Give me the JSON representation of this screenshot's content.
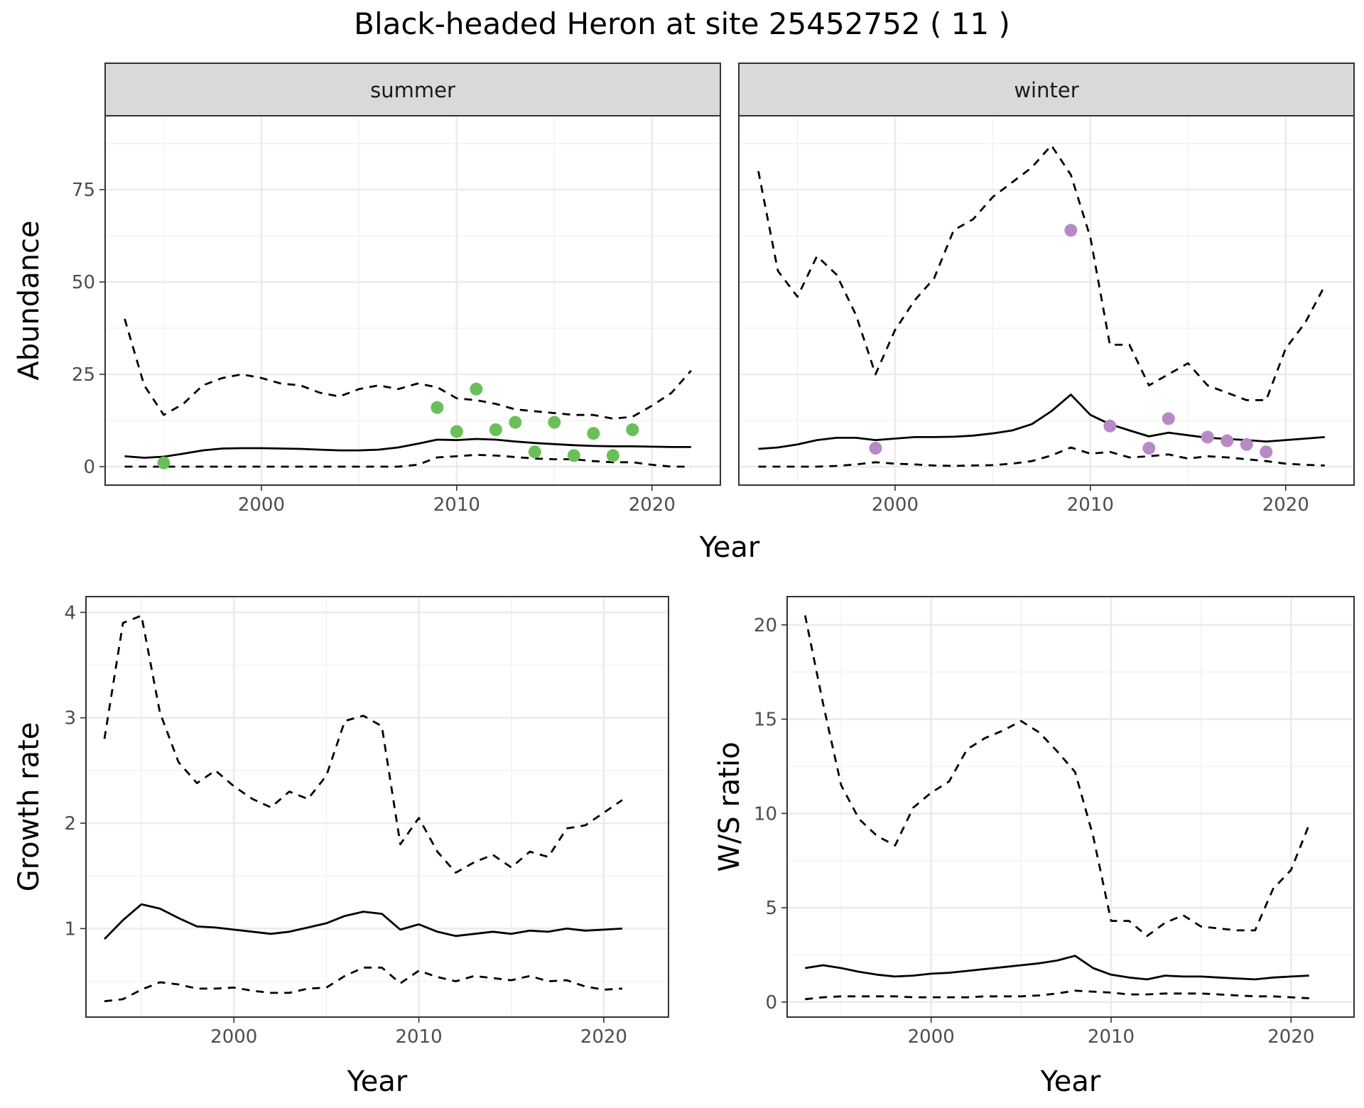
{
  "title": "Black-headed Heron at site 25452752 ( 11 )",
  "colors": {
    "summer_points": "#6bbf59",
    "winter_points": "#b78ac6",
    "line": "#000000"
  },
  "chart_data": [
    {
      "id": "abundance",
      "type": "line",
      "facets": [
        "summer",
        "winter"
      ],
      "xlabel": "Year",
      "ylabel": "Abundance",
      "xlim": [
        1992,
        2023.5
      ],
      "ylim": [
        -5,
        95
      ],
      "xticks": [
        2000,
        2010,
        2020
      ],
      "yticks": [
        0,
        25,
        50,
        75
      ],
      "panels": [
        {
          "facet": "summer",
          "x": [
            1993,
            1994,
            1995,
            1996,
            1997,
            1998,
            1999,
            2000,
            2001,
            2002,
            2003,
            2004,
            2005,
            2006,
            2007,
            2008,
            2009,
            2010,
            2011,
            2012,
            2013,
            2014,
            2015,
            2016,
            2017,
            2018,
            2019,
            2020,
            2021,
            2022
          ],
          "mean": [
            2.8,
            2.4,
            2.7,
            3.5,
            4.4,
            4.9,
            5.0,
            5.0,
            4.9,
            4.8,
            4.6,
            4.4,
            4.4,
            4.6,
            5.2,
            6.2,
            7.3,
            7.2,
            7.5,
            7.3,
            6.8,
            6.4,
            6.1,
            5.8,
            5.6,
            5.5,
            5.5,
            5.4,
            5.3,
            5.3
          ],
          "upper": [
            40,
            22,
            14,
            17,
            22,
            24,
            25,
            24,
            22.5,
            22,
            20,
            19,
            21,
            22,
            21,
            22.5,
            21.5,
            18.5,
            18,
            17,
            15.5,
            15,
            14.5,
            14,
            14,
            13,
            13.5,
            16.5,
            20,
            26
          ],
          "lower": [
            0,
            0,
            0,
            0,
            0,
            0,
            0,
            0,
            0,
            0,
            0,
            0,
            0,
            0,
            0,
            0.5,
            2.5,
            2.8,
            3.2,
            3,
            2.6,
            2.2,
            2,
            2,
            1.5,
            1.2,
            1.2,
            0.5,
            0,
            0
          ],
          "obs_x": [
            1995,
            2009,
            2010,
            2011,
            2012,
            2013,
            2014,
            2015,
            2016,
            2017,
            2018,
            2019
          ],
          "obs_y": [
            1,
            16,
            9.5,
            21,
            10,
            12,
            4,
            12,
            3,
            9,
            3,
            10
          ]
        },
        {
          "facet": "winter",
          "x": [
            1993,
            1994,
            1995,
            1996,
            1997,
            1998,
            1999,
            2000,
            2001,
            2002,
            2003,
            2004,
            2005,
            2006,
            2007,
            2008,
            2009,
            2010,
            2011,
            2012,
            2013,
            2014,
            2015,
            2016,
            2017,
            2018,
            2019,
            2020,
            2021,
            2022
          ],
          "mean": [
            4.8,
            5.2,
            6,
            7.2,
            7.8,
            7.8,
            7.2,
            7.6,
            8,
            8,
            8.1,
            8.4,
            9,
            9.8,
            11.5,
            15,
            19.5,
            14,
            11.5,
            9.8,
            8.2,
            9.2,
            8.5,
            7.8,
            7.5,
            7.2,
            6.8,
            7.2,
            7.6,
            8
          ],
          "upper": [
            80,
            53,
            46,
            57,
            52,
            41,
            25,
            37,
            45,
            51,
            64,
            67,
            73,
            77,
            81,
            87,
            79,
            62,
            33,
            33,
            22,
            25,
            28,
            22,
            20,
            18,
            18,
            32,
            39,
            49
          ],
          "lower": [
            0,
            0,
            0,
            0,
            0.2,
            0.6,
            1.2,
            0.8,
            0.6,
            0.3,
            0.2,
            0.3,
            0.4,
            0.8,
            1.5,
            3,
            5.2,
            3.5,
            4,
            2.5,
            2.8,
            3.3,
            2.2,
            2.8,
            2.5,
            2,
            1.5,
            0.8,
            0.5,
            0.3
          ],
          "obs_x": [
            1999,
            2009,
            2011,
            2013,
            2014,
            2016,
            2017,
            2018,
            2019
          ],
          "obs_y": [
            5,
            64,
            11,
            5,
            13,
            8,
            7,
            6,
            4
          ]
        }
      ]
    },
    {
      "id": "growth",
      "type": "line",
      "xlabel": "Year",
      "ylabel": "Growth rate",
      "xlim": [
        1992,
        2023.5
      ],
      "ylim": [
        0.16,
        4.15
      ],
      "xticks": [
        2000,
        2010,
        2020
      ],
      "yticks": [
        1,
        2,
        3,
        4
      ],
      "x": [
        1993,
        1994,
        1995,
        1996,
        1997,
        1998,
        1999,
        2000,
        2001,
        2002,
        2003,
        2004,
        2005,
        2006,
        2007,
        2008,
        2009,
        2010,
        2011,
        2012,
        2013,
        2014,
        2015,
        2016,
        2017,
        2018,
        2019,
        2020,
        2021
      ],
      "mean": [
        0.9,
        1.08,
        1.23,
        1.19,
        1.1,
        1.02,
        1.01,
        0.99,
        0.97,
        0.95,
        0.97,
        1.01,
        1.05,
        1.12,
        1.16,
        1.14,
        0.99,
        1.04,
        0.97,
        0.93,
        0.95,
        0.97,
        0.95,
        0.98,
        0.97,
        1.0,
        0.98,
        0.99,
        1.0
      ],
      "upper": [
        2.8,
        3.9,
        3.97,
        3.05,
        2.58,
        2.38,
        2.5,
        2.35,
        2.23,
        2.15,
        2.3,
        2.23,
        2.45,
        2.97,
        3.02,
        2.92,
        1.8,
        2.05,
        1.73,
        1.53,
        1.63,
        1.7,
        1.58,
        1.73,
        1.68,
        1.95,
        1.98,
        2.1,
        2.22
      ],
      "lower": [
        0.31,
        0.33,
        0.42,
        0.49,
        0.47,
        0.43,
        0.43,
        0.44,
        0.41,
        0.39,
        0.39,
        0.43,
        0.44,
        0.55,
        0.63,
        0.63,
        0.48,
        0.6,
        0.54,
        0.5,
        0.55,
        0.53,
        0.51,
        0.55,
        0.5,
        0.51,
        0.45,
        0.42,
        0.43
      ]
    },
    {
      "id": "ws_ratio",
      "type": "line",
      "xlabel": "Year",
      "ylabel": "W/S ratio",
      "xlim": [
        1992,
        2023.5
      ],
      "ylim": [
        -0.8,
        21.5
      ],
      "xticks": [
        2000,
        2010,
        2020
      ],
      "yticks": [
        0,
        5,
        10,
        15,
        20
      ],
      "x": [
        1993,
        1994,
        1995,
        1996,
        1997,
        1998,
        1999,
        2000,
        2001,
        2002,
        2003,
        2004,
        2005,
        2006,
        2007,
        2008,
        2009,
        2010,
        2011,
        2012,
        2013,
        2014,
        2015,
        2016,
        2017,
        2018,
        2019,
        2020,
        2021
      ],
      "mean": [
        1.8,
        1.95,
        1.8,
        1.6,
        1.45,
        1.35,
        1.4,
        1.5,
        1.55,
        1.65,
        1.75,
        1.85,
        1.95,
        2.05,
        2.2,
        2.45,
        1.8,
        1.45,
        1.3,
        1.2,
        1.4,
        1.35,
        1.35,
        1.3,
        1.25,
        1.2,
        1.3,
        1.35,
        1.4
      ],
      "upper": [
        20.5,
        15.8,
        11.5,
        9.7,
        8.8,
        8.3,
        10.3,
        11.1,
        11.7,
        13.4,
        14,
        14.4,
        14.9,
        14.3,
        13.3,
        12.2,
        8.8,
        4.3,
        4.3,
        3.5,
        4.2,
        4.6,
        4,
        3.9,
        3.8,
        3.8,
        6,
        7,
        9.4
      ],
      "lower": [
        0.15,
        0.25,
        0.3,
        0.3,
        0.3,
        0.3,
        0.25,
        0.25,
        0.25,
        0.25,
        0.3,
        0.3,
        0.3,
        0.35,
        0.45,
        0.6,
        0.55,
        0.5,
        0.4,
        0.4,
        0.45,
        0.45,
        0.45,
        0.4,
        0.35,
        0.3,
        0.3,
        0.25,
        0.2
      ]
    }
  ]
}
